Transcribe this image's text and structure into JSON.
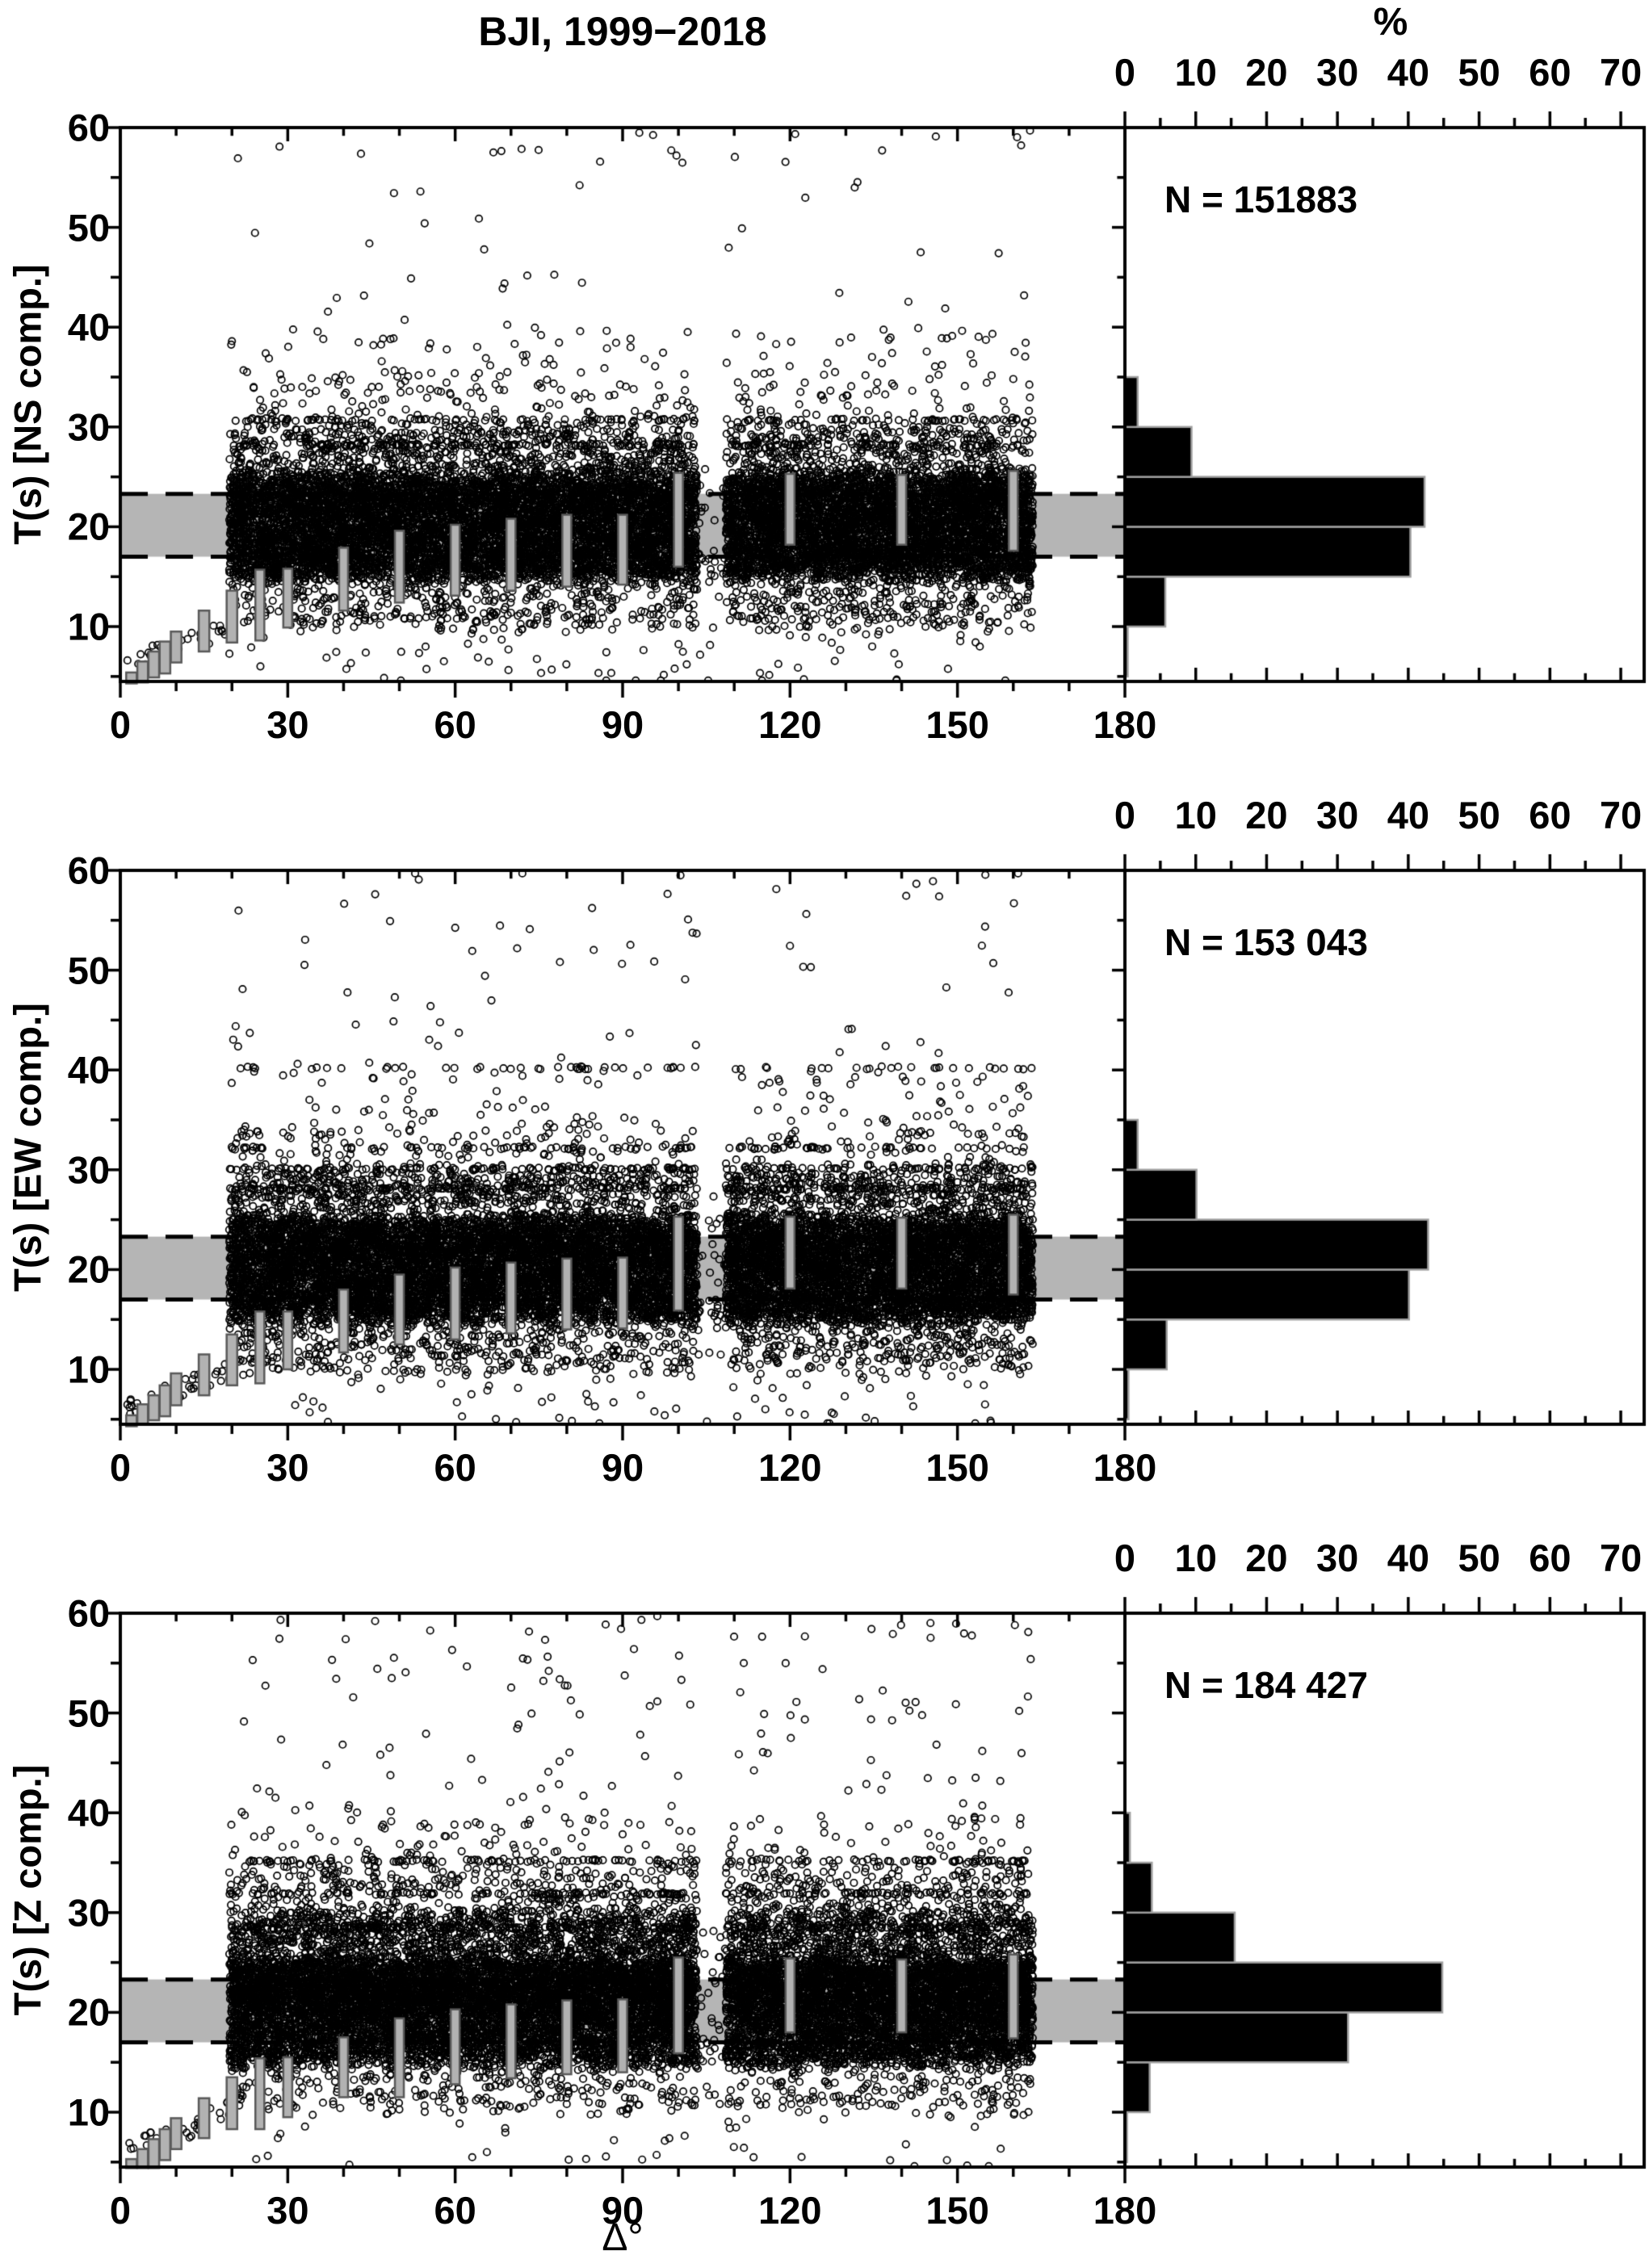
{
  "title": "BJI, 1999−2018",
  "top_axis": {
    "label": "%",
    "tick_labels": [
      0,
      10,
      20,
      30,
      40,
      50,
      60,
      70
    ],
    "minor_step": 5
  },
  "x_axis": {
    "label": "Δ°",
    "tick_labels": [
      0,
      30,
      60,
      90,
      120,
      150,
      180
    ],
    "minor_step": 10
  },
  "y_axis": {
    "tick_labels": [
      10,
      20,
      30,
      40,
      50,
      60
    ],
    "minor_step": 5
  },
  "panels": [
    {
      "ylabel": "T(s) [NS comp.]",
      "n_label": "N = 151883"
    },
    {
      "ylabel": "T(s) [EW comp.]",
      "n_label": "N = 153 043"
    },
    {
      "ylabel": "T(s) [Z comp.]",
      "n_label": "N = 184 427"
    }
  ],
  "colors": {
    "points": "#000000",
    "band_fill": "#b5b5b5",
    "box_fill": "#b2b2b2",
    "box_stroke": "#595959",
    "hist_fill": "#000000",
    "hist_stroke": "#9e9e9e",
    "dashed_line": "#000000",
    "axis": "#000000"
  },
  "chart_data": [
    {
      "type": "scatter",
      "component": "NS",
      "n_total": 151883,
      "xlabel": "Δ°",
      "ylabel": "T(s) [NS comp.]",
      "xlim": [
        0,
        180
      ],
      "ylim": [
        4.5,
        60
      ],
      "x_ticks": [
        0,
        30,
        60,
        90,
        120,
        150,
        180
      ],
      "y_ticks": [
        10,
        20,
        30,
        40,
        50,
        60
      ],
      "reference_band_T": [
        17.0,
        23.3
      ],
      "data_delta_range": [
        19.5,
        163.5
      ],
      "low_density_gap_delta": [
        103.3,
        108.5
      ],
      "t_bin_edges": [
        4.5,
        10,
        15,
        20,
        25,
        30,
        35,
        40,
        60
      ],
      "t_bin_pct": [
        0.5,
        5.7,
        40.5,
        42.3,
        9.4,
        1.8,
        0.5,
        0.4
      ],
      "quantized_rows_T": [
        [
          30.7,
          110
        ],
        [
          28.2,
          130
        ]
      ],
      "median_boxes": [
        [
          2,
          4.3,
          5.4
        ],
        [
          4,
          4.4,
          6.5
        ],
        [
          6,
          4.9,
          7.5
        ],
        [
          8,
          5.3,
          8.5
        ],
        [
          10,
          6.4,
          9.5
        ],
        [
          15,
          7.5,
          11.6
        ],
        [
          20,
          8.4,
          13.6
        ]
      ],
      "range_bars": [
        [
          25,
          8.6,
          15.7
        ],
        [
          30,
          9.9,
          15.8
        ],
        [
          40,
          11.6,
          17.9
        ],
        [
          50,
          12.4,
          19.6
        ],
        [
          60,
          13.1,
          20.2
        ],
        [
          70,
          13.6,
          20.8
        ],
        [
          80,
          14.0,
          21.2
        ],
        [
          90,
          14.2,
          21.2
        ],
        [
          100,
          16.0,
          25.4
        ],
        [
          120,
          18.2,
          25.3
        ],
        [
          140,
          18.2,
          25.2
        ],
        [
          160,
          17.6,
          25.6
        ]
      ],
      "histogram": {
        "type": "bar",
        "orientation": "horizontal",
        "unit": "%",
        "xlim_pct": [
          0,
          73
        ],
        "pct_ticks": [
          0,
          10,
          20,
          30,
          40,
          50,
          60,
          70
        ],
        "bins_T": [
          [
            5,
            10
          ],
          [
            10,
            15
          ],
          [
            15,
            20
          ],
          [
            20,
            25
          ],
          [
            25,
            30
          ],
          [
            30,
            35
          ]
        ],
        "values_pct": [
          0.4,
          5.7,
          40.3,
          42.3,
          9.4,
          1.8
        ]
      }
    },
    {
      "type": "scatter",
      "component": "EW",
      "n_total": 153043,
      "xlabel": "Δ°",
      "ylabel": "T(s) [EW comp.]",
      "xlim": [
        0,
        180
      ],
      "ylim": [
        4.5,
        60
      ],
      "x_ticks": [
        0,
        30,
        60,
        90,
        120,
        150,
        180
      ],
      "y_ticks": [
        10,
        20,
        30,
        40,
        50,
        60
      ],
      "reference_band_T": [
        17.0,
        23.3
      ],
      "data_delta_range": [
        19.5,
        163.5
      ],
      "low_density_gap_delta": [
        103.3,
        108.5
      ],
      "t_bin_edges": [
        4.5,
        10,
        15,
        20,
        25,
        30,
        35,
        40,
        60
      ],
      "t_bin_pct": [
        0.5,
        6.0,
        40.1,
        42.8,
        10.1,
        1.8,
        0.6,
        0.5
      ],
      "quantized_rows_T": [
        [
          40.2,
          60
        ],
        [
          32.2,
          90
        ],
        [
          30.1,
          110
        ],
        [
          28.1,
          130
        ]
      ],
      "median_boxes": [
        [
          2,
          4.3,
          5.4
        ],
        [
          4,
          4.5,
          6.5
        ],
        [
          6,
          4.9,
          7.4
        ],
        [
          8,
          5.3,
          8.4
        ],
        [
          10,
          6.4,
          9.6
        ],
        [
          15,
          7.4,
          11.5
        ],
        [
          20,
          8.4,
          13.5
        ]
      ],
      "range_bars": [
        [
          25,
          8.6,
          15.8
        ],
        [
          30,
          10.0,
          15.8
        ],
        [
          40,
          11.7,
          18.0
        ],
        [
          50,
          12.5,
          19.5
        ],
        [
          60,
          13.0,
          20.2
        ],
        [
          70,
          13.6,
          20.7
        ],
        [
          80,
          14.0,
          21.1
        ],
        [
          90,
          14.1,
          21.2
        ],
        [
          100,
          15.9,
          25.3
        ],
        [
          120,
          18.1,
          25.3
        ],
        [
          140,
          18.1,
          25.2
        ],
        [
          160,
          17.5,
          25.5
        ]
      ],
      "histogram": {
        "type": "bar",
        "orientation": "horizontal",
        "unit": "%",
        "xlim_pct": [
          0,
          73
        ],
        "pct_ticks": [
          0,
          10,
          20,
          30,
          40,
          50,
          60,
          70
        ],
        "bins_T": [
          [
            5,
            10
          ],
          [
            10,
            15
          ],
          [
            15,
            20
          ],
          [
            20,
            25
          ],
          [
            25,
            30
          ],
          [
            30,
            35
          ]
        ],
        "values_pct": [
          0.5,
          5.9,
          40.1,
          42.8,
          10.1,
          1.8
        ]
      }
    },
    {
      "type": "scatter",
      "component": "Z",
      "n_total": 184427,
      "xlabel": "Δ°",
      "ylabel": "T(s) [Z comp.]",
      "xlim": [
        0,
        180
      ],
      "ylim": [
        4.5,
        60
      ],
      "x_ticks": [
        0,
        30,
        60,
        90,
        120,
        150,
        180
      ],
      "y_ticks": [
        10,
        20,
        30,
        40,
        50,
        60
      ],
      "reference_band_T": [
        17.0,
        23.3
      ],
      "data_delta_range": [
        19.5,
        163.5
      ],
      "low_density_gap_delta": [
        103.3,
        108.5
      ],
      "t_bin_edges": [
        4.5,
        10,
        15,
        20,
        25,
        30,
        35,
        40,
        60
      ],
      "t_bin_pct": [
        0.3,
        3.4,
        31.4,
        44.6,
        15.4,
        3.8,
        0.9,
        0.8
      ],
      "quantized_rows_T": [
        [
          35.2,
          130
        ],
        [
          31.9,
          150
        ],
        [
          28.5,
          150
        ]
      ],
      "median_boxes": [
        [
          2,
          4.4,
          5.3
        ],
        [
          4,
          4.4,
          6.3
        ],
        [
          6,
          4.4,
          7.3
        ],
        [
          8,
          5.2,
          8.3
        ],
        [
          10,
          6.3,
          9.4
        ],
        [
          15,
          7.4,
          11.4
        ],
        [
          20,
          8.3,
          13.5
        ]
      ],
      "range_bars": [
        [
          25,
          8.3,
          15.4
        ],
        [
          30,
          9.5,
          15.5
        ],
        [
          40,
          11.5,
          17.5
        ],
        [
          50,
          11.5,
          19.4
        ],
        [
          60,
          12.8,
          20.3
        ],
        [
          70,
          13.4,
          20.8
        ],
        [
          80,
          13.8,
          21.2
        ],
        [
          90,
          14.0,
          21.3
        ],
        [
          100,
          15.9,
          25.5
        ],
        [
          120,
          18.0,
          25.4
        ],
        [
          140,
          18.0,
          25.3
        ],
        [
          160,
          17.4,
          25.8
        ]
      ],
      "histogram": {
        "type": "bar",
        "orientation": "horizontal",
        "unit": "%",
        "xlim_pct": [
          0,
          73
        ],
        "pct_ticks": [
          0,
          10,
          20,
          30,
          40,
          50,
          60,
          70
        ],
        "bins_T": [
          [
            5,
            10
          ],
          [
            10,
            15
          ],
          [
            15,
            20
          ],
          [
            20,
            25
          ],
          [
            25,
            30
          ],
          [
            30,
            35
          ],
          [
            35,
            40
          ]
        ],
        "values_pct": [
          0.3,
          3.5,
          31.5,
          44.8,
          15.5,
          3.8,
          0.7
        ]
      }
    }
  ]
}
